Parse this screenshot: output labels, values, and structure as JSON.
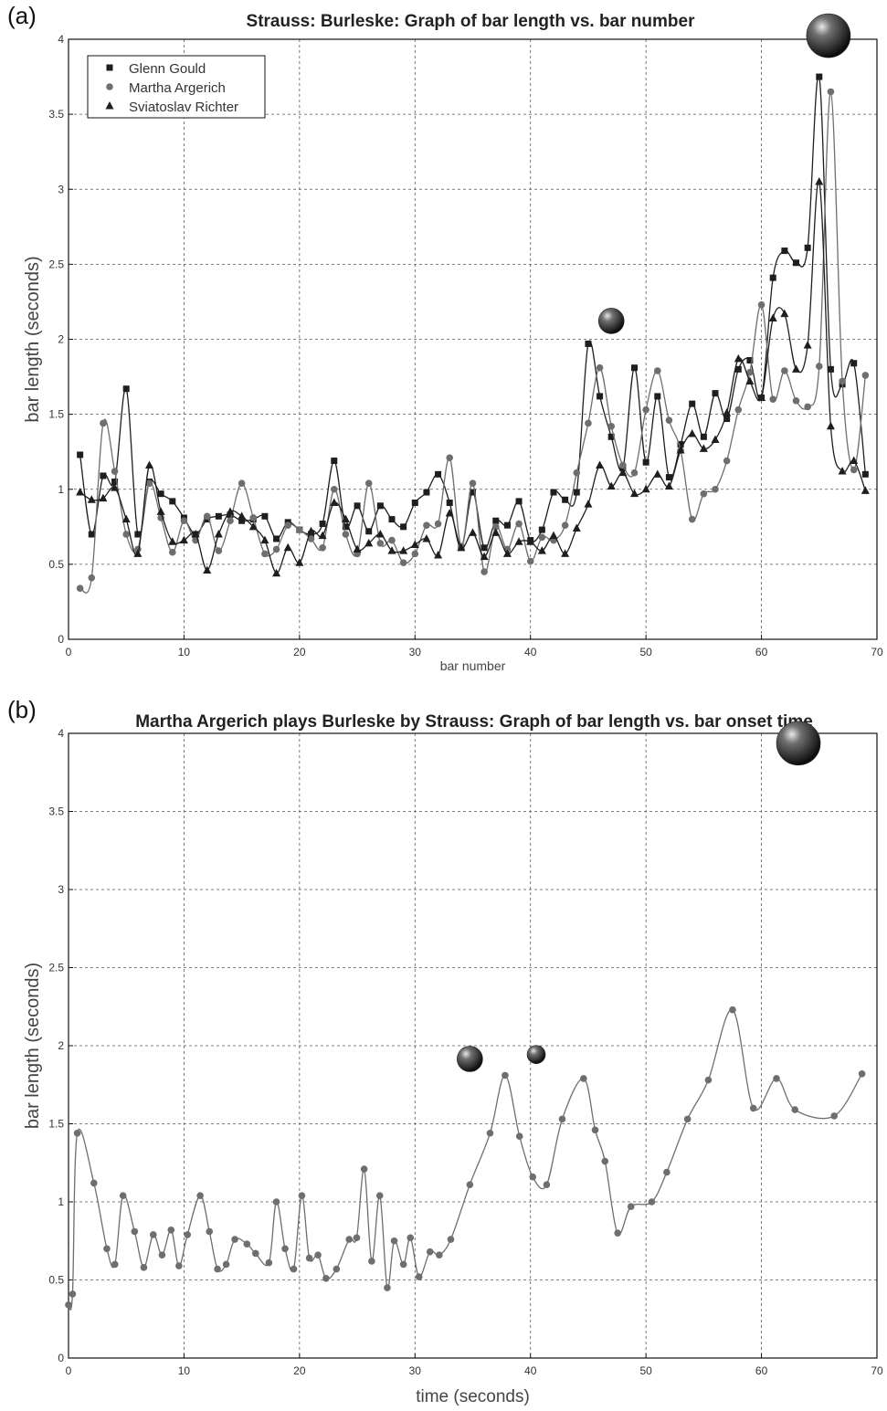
{
  "panels": {
    "a": {
      "label": "(a)"
    },
    "b": {
      "label": "(b)"
    }
  },
  "colors": {
    "gould": "#1e1e1e",
    "argerich": "#6e6e6e",
    "richter": "#1e1e1e",
    "grid": "#555555"
  },
  "chart_data": [
    {
      "type": "line",
      "title": "Strauss: Burleske: Graph of bar length vs. bar number",
      "xlabel": "bar number",
      "ylabel": "bar length (seconds)",
      "xlim": [
        0,
        70
      ],
      "ylim": [
        0,
        4
      ],
      "xticks": [
        0,
        10,
        20,
        30,
        40,
        50,
        60,
        70
      ],
      "yticks": [
        0,
        0.5,
        1,
        1.5,
        2,
        2.5,
        3,
        3.5,
        4
      ],
      "grid": true,
      "legend": "top-left",
      "annotations": [
        "sphere marker above peak at bar 47",
        "large sphere marker above peak at bar 66"
      ],
      "series": [
        {
          "name": "Glenn Gould",
          "marker": "square",
          "x": [
            1,
            2,
            3,
            4,
            5,
            6,
            7,
            8,
            9,
            10,
            11,
            12,
            13,
            14,
            15,
            16,
            17,
            18,
            19,
            20,
            21,
            22,
            23,
            24,
            25,
            26,
            27,
            28,
            29,
            30,
            31,
            32,
            33,
            34,
            35,
            36,
            37,
            38,
            39,
            40,
            41,
            42,
            43,
            44,
            45,
            46,
            47,
            48,
            49,
            50,
            51,
            52,
            53,
            54,
            55,
            56,
            57,
            58,
            59,
            60,
            61,
            62,
            63,
            64,
            65,
            66,
            67,
            68,
            69
          ],
          "values": [
            1.23,
            0.7,
            1.09,
            1.05,
            1.67,
            0.7,
            1.05,
            0.97,
            0.92,
            0.81,
            0.7,
            0.8,
            0.82,
            0.83,
            0.79,
            0.8,
            0.82,
            0.67,
            0.78,
            0.73,
            0.7,
            0.77,
            1.19,
            0.75,
            0.89,
            0.72,
            0.89,
            0.8,
            0.75,
            0.91,
            0.98,
            1.1,
            0.91,
            0.61,
            0.98,
            0.61,
            0.79,
            0.76,
            0.92,
            0.66,
            0.73,
            0.98,
            0.93,
            0.98,
            1.97,
            1.62,
            1.35,
            1.14,
            1.81,
            1.18,
            1.62,
            1.08,
            1.3,
            1.57,
            1.35,
            1.64,
            1.47,
            1.8,
            1.86,
            1.61,
            2.41,
            2.59,
            2.51,
            2.61,
            3.75,
            1.8,
            1.7,
            1.84,
            1.1
          ]
        },
        {
          "name": "Martha Argerich",
          "marker": "circle",
          "x": [
            1,
            2,
            3,
            4,
            5,
            6,
            7,
            8,
            9,
            10,
            11,
            12,
            13,
            14,
            15,
            16,
            17,
            18,
            19,
            20,
            21,
            22,
            23,
            24,
            25,
            26,
            27,
            28,
            29,
            30,
            31,
            32,
            33,
            34,
            35,
            36,
            37,
            38,
            39,
            40,
            41,
            42,
            43,
            44,
            45,
            46,
            47,
            48,
            49,
            50,
            51,
            52,
            53,
            54,
            55,
            56,
            57,
            58,
            59,
            60,
            61,
            62,
            63,
            64,
            65,
            66,
            67,
            68,
            69
          ],
          "values": [
            0.34,
            0.41,
            1.44,
            1.12,
            0.7,
            0.6,
            1.04,
            0.81,
            0.58,
            0.79,
            0.66,
            0.82,
            0.59,
            0.79,
            1.04,
            0.81,
            0.57,
            0.6,
            0.76,
            0.73,
            0.67,
            0.61,
            1.0,
            0.7,
            0.57,
            1.04,
            0.64,
            0.66,
            0.51,
            0.57,
            0.76,
            0.77,
            1.21,
            0.62,
            1.04,
            0.45,
            0.75,
            0.6,
            0.77,
            0.52,
            0.68,
            0.66,
            0.76,
            1.11,
            1.44,
            1.81,
            1.42,
            1.16,
            1.11,
            1.53,
            1.79,
            1.46,
            1.26,
            0.8,
            0.97,
            1.0,
            1.19,
            1.53,
            1.78,
            2.23,
            1.6,
            1.79,
            1.59,
            1.55,
            1.82,
            3.65,
            1.72,
            1.13,
            1.76
          ]
        },
        {
          "name": "Sviatoslav Richter",
          "marker": "triangle",
          "x": [
            1,
            2,
            3,
            4,
            5,
            6,
            7,
            8,
            9,
            10,
            11,
            12,
            13,
            14,
            15,
            16,
            17,
            18,
            19,
            20,
            21,
            22,
            23,
            24,
            25,
            26,
            27,
            28,
            29,
            30,
            31,
            32,
            33,
            34,
            35,
            36,
            37,
            38,
            39,
            40,
            41,
            42,
            43,
            44,
            45,
            46,
            47,
            48,
            49,
            50,
            51,
            52,
            53,
            54,
            55,
            56,
            57,
            58,
            59,
            60,
            61,
            62,
            63,
            64,
            65,
            66,
            67,
            68,
            69
          ],
          "values": [
            0.98,
            0.93,
            0.94,
            1.01,
            0.8,
            0.57,
            1.16,
            0.85,
            0.65,
            0.66,
            0.7,
            0.46,
            0.7,
            0.85,
            0.82,
            0.75,
            0.66,
            0.44,
            0.61,
            0.51,
            0.72,
            0.69,
            0.91,
            0.8,
            0.6,
            0.64,
            0.7,
            0.59,
            0.59,
            0.63,
            0.67,
            0.56,
            0.84,
            0.61,
            0.71,
            0.55,
            0.71,
            0.57,
            0.65,
            0.65,
            0.59,
            0.69,
            0.57,
            0.74,
            0.9,
            1.16,
            1.02,
            1.11,
            0.97,
            1.0,
            1.1,
            1.02,
            1.26,
            1.37,
            1.27,
            1.33,
            1.51,
            1.87,
            1.72,
            1.61,
            2.14,
            2.17,
            1.8,
            1.96,
            3.05,
            1.42,
            1.12,
            1.19,
            0.99
          ]
        }
      ]
    },
    {
      "type": "line",
      "title": "Martha Argerich plays Burleske by Strauss: Graph of bar length vs. bar onset time",
      "xlabel": "time (seconds)",
      "ylabel": "bar length (seconds)",
      "xlim": [
        0,
        70
      ],
      "ylim": [
        0,
        4
      ],
      "xticks": [
        0,
        10,
        20,
        30,
        40,
        50,
        60,
        70
      ],
      "yticks": [
        0,
        0.5,
        1,
        1.5,
        2,
        2.5,
        3,
        3.5,
        4
      ],
      "grid": true,
      "annotations": [
        "sphere marker above peak near 35 s",
        "sphere marker above peak near 40.5 s",
        "large sphere marker above peak near 63 s"
      ],
      "series": [
        {
          "name": "Martha Argerich",
          "marker": "circle",
          "x": [
            0.0,
            0.35,
            0.76,
            2.2,
            3.32,
            4.02,
            4.72,
            5.72,
            6.52,
            7.34,
            8.1,
            8.88,
            9.56,
            10.3,
            11.4,
            12.2,
            12.9,
            13.65,
            14.4,
            15.45,
            16.2,
            17.35,
            18.0,
            18.75,
            19.5,
            20.2,
            20.85,
            21.6,
            22.3,
            23.2,
            24.3,
            24.95,
            25.6,
            26.25,
            26.95,
            27.6,
            28.2,
            29.0,
            29.6,
            30.35,
            31.3,
            32.1,
            33.1,
            34.75,
            36.5,
            37.8,
            39.05,
            40.2,
            41.4,
            42.75,
            44.6,
            45.6,
            46.45,
            47.55,
            48.7,
            50.5,
            51.8,
            53.6,
            55.4,
            57.5,
            59.3,
            61.3,
            62.9,
            66.3,
            68.7
          ]
        }
      ]
    }
  ]
}
